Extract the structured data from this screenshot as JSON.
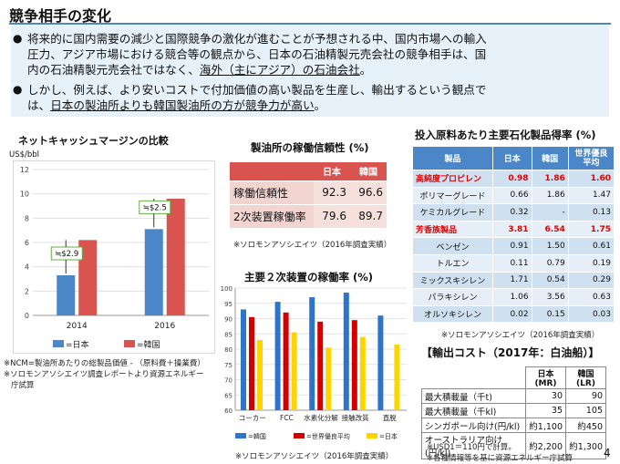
{
  "slide": {
    "title": "競争相手の変化",
    "page_number": "4"
  },
  "bullets": {
    "b1_l1": "将来的に国内需要の減少と国際競争の激化が進むことが予想される中、国内市場への輸入",
    "b1_l2": "圧力、アジア市場における競合等の観点から、日本の石油精製元売会社の競争相手は、国",
    "b1_l3a": "内の石油精製元売会社ではなく、",
    "b1_l3b": "海外（主にアジア）の石油会社",
    "b1_l3c": "。",
    "b2_l1": "しかし、例えば、より安いコストで付加価値の高い製品を生産し、輸出するという観点で",
    "b2_l2a": "は、",
    "b2_l2b": "日本の製油所よりも韓国製油所の方が競争力が高い",
    "b2_l2c": "。"
  },
  "margin_chart": {
    "title": "ネットキャッシュマージンの比較",
    "unit": "US$/bbl",
    "chart_data": {
      "type": "bar",
      "categories": [
        "2014",
        "2016"
      ],
      "series": [
        {
          "name": "=日本",
          "values": [
            3.3,
            7.1
          ],
          "color": "#4a86c8"
        },
        {
          "name": "=韓国",
          "values": [
            6.2,
            9.6
          ],
          "color": "#d9534f"
        }
      ],
      "ylim": [
        0,
        12
      ],
      "yticks": [
        "0",
        "2",
        "4",
        "6",
        "8",
        "10",
        "12"
      ],
      "annotations": [
        "≒$2.9",
        "≒$2.5"
      ]
    },
    "note1": "※NCM=製油所あたりの総製品価値 ‐ （原料費＋操業費）",
    "note2": "※ソロモンアソシエイツ調査レポートより資源エネルギー",
    "note3": "庁試算"
  },
  "reliability": {
    "title": "製油所の稼働信頼性 (%)",
    "col_japan": "日本",
    "col_korea": "韓国",
    "rows": [
      {
        "label": "稼働信頼性",
        "japan": "92.3",
        "korea": "96.6"
      },
      {
        "label": "2次装置稼働率",
        "japan": "79.6",
        "korea": "89.7"
      }
    ],
    "note": "※ソロモンアソシエイツ（2016年調査実績）"
  },
  "secondary": {
    "title": "主要２次装置の稼働率 (%)",
    "chart_data": {
      "type": "bar",
      "categories": [
        "コーカー",
        "FCC",
        "水素化分解",
        "接触改質",
        "直脱"
      ],
      "series": [
        {
          "name": "=韓国",
          "values": [
            93,
            95.5,
            97,
            98.5,
            91
          ],
          "color": "#2e75c9"
        },
        {
          "name": "=世界優良平均",
          "values": [
            90.5,
            92,
            89,
            89.5,
            null
          ],
          "color": "#d40000"
        },
        {
          "name": "=日本",
          "values": [
            83,
            85.5,
            80.5,
            84,
            81.5
          ],
          "color": "#ffd400"
        }
      ],
      "ylim": [
        60,
        100
      ],
      "yticks": [
        "60",
        "65",
        "70",
        "75",
        "80",
        "85",
        "90",
        "95",
        "100"
      ]
    },
    "note": "※ソロモンアソシエイツ（2016年調査実績）"
  },
  "yield": {
    "title": "投入原料あたり主要石化製品得率 (%)",
    "headers": [
      "製品",
      "日本",
      "韓国",
      "世界優良平均"
    ],
    "header_avg_l1": "世界優良",
    "header_avg_l2": "平均",
    "rows": [
      {
        "label": "高純度プロピレン",
        "japan": "0.98",
        "korea": "1.86",
        "avg": "1.60",
        "highlight": true
      },
      {
        "label": "ポリマーグレード",
        "japan": "0.66",
        "korea": "1.86",
        "avg": "1.47",
        "highlight": false
      },
      {
        "label": "ケミカルグレード",
        "japan": "0.32",
        "korea": "-",
        "avg": "0.13",
        "highlight": false
      },
      {
        "label": "芳香族製品",
        "japan": "3.81",
        "korea": "6.54",
        "avg": "1.75",
        "highlight": true
      },
      {
        "label": "ベンゼン",
        "japan": "0.91",
        "korea": "1.50",
        "avg": "0.61",
        "highlight": false
      },
      {
        "label": "トルエン",
        "japan": "0.11",
        "korea": "0.79",
        "avg": "0.19",
        "highlight": false
      },
      {
        "label": "ミックスキシレン",
        "japan": "1.71",
        "korea": "0.54",
        "avg": "0.29",
        "highlight": false
      },
      {
        "label": "パラキシレン",
        "japan": "1.06",
        "korea": "3.56",
        "avg": "0.63",
        "highlight": false
      },
      {
        "label": "オルソキシレン",
        "japan": "0.02",
        "korea": "0.15",
        "avg": "0.03",
        "highlight": false
      }
    ],
    "note": "※ソロモンアソシエイツ（2016年調査実績）"
  },
  "export": {
    "title": "【輸出コスト（2017年：白油船）】",
    "col_japan": "日本(MR)",
    "col_korea": "韓国(LR)",
    "rows": [
      {
        "label": "最大積載量（千t)",
        "japan": "30",
        "korea": "90"
      },
      {
        "label": "最大積載量（千kl)",
        "japan": "35",
        "korea": "105"
      },
      {
        "label": "シンガポール向け(円/kl)",
        "japan": "約1,100",
        "korea": "約450"
      },
      {
        "label": "オーストラリア向け(円/kl)",
        "japan": "約2,200",
        "korea": "約1,300"
      }
    ],
    "note1": "※USD1＝110円で計算。",
    "note2": "※各種情報等を基に資源エネルギー庁試算"
  }
}
